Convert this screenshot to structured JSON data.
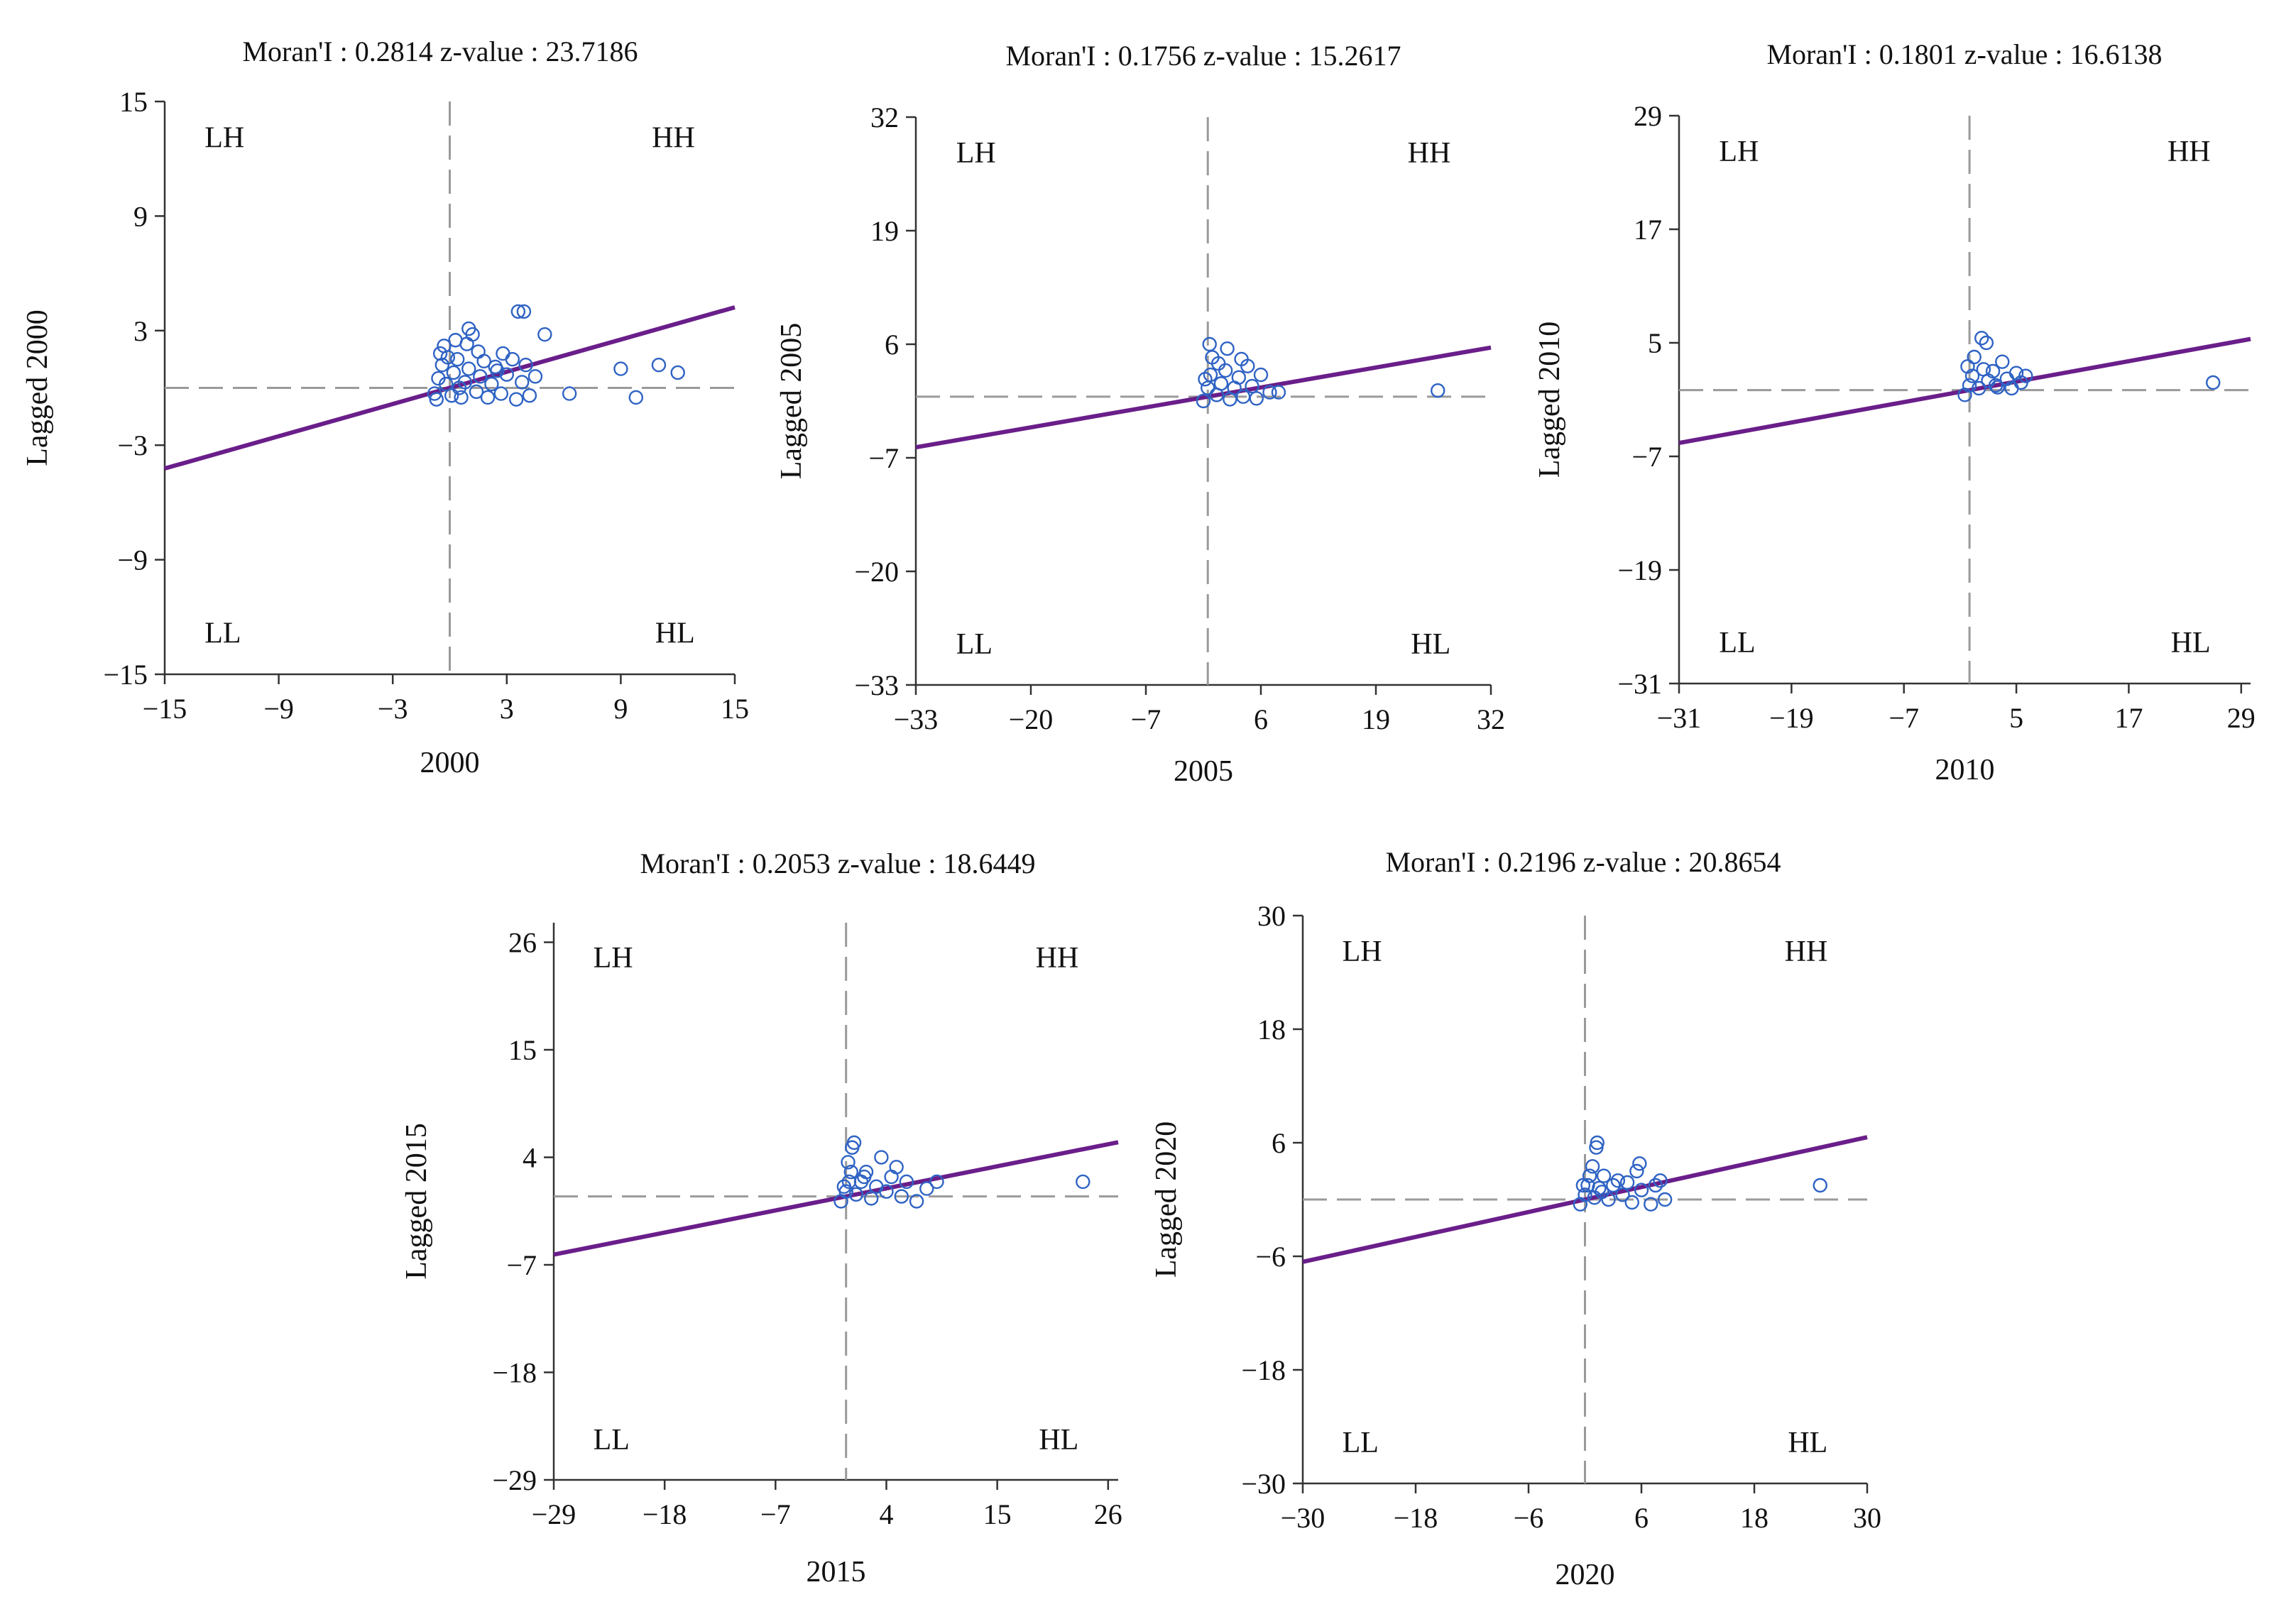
{
  "chart_data": [
    {
      "type": "scatter",
      "year": "2000",
      "morans_i": "0.2814",
      "z_value": "23.7186",
      "title": "Moran'I : 0.2814   z-value : 23.7186",
      "xlabel": "2000",
      "ylabel": "Lagged 2000",
      "xlim": [
        -15,
        15
      ],
      "ylim": [
        -15,
        15
      ],
      "xticks": [
        -15,
        -9,
        -3,
        3,
        9,
        15
      ],
      "yticks": [
        -15,
        -9,
        -3,
        3,
        9,
        15
      ],
      "xtick_labels": [
        "−15",
        "−9",
        "−3",
        "3",
        "9",
        "15"
      ],
      "ytick_labels": [
        "−15",
        "−9",
        "−3",
        "3",
        "9",
        "15"
      ],
      "fit_slope": 0.2814,
      "quadrants": {
        "lh": "LH",
        "hh": "HH",
        "ll": "LL",
        "hl": "HL"
      },
      "points": [
        [
          -0.8,
          -0.3
        ],
        [
          -0.6,
          0.5
        ],
        [
          -0.4,
          1.2
        ],
        [
          -0.5,
          1.8
        ],
        [
          -0.3,
          2.2
        ],
        [
          -0.7,
          -0.6
        ],
        [
          -0.2,
          0.2
        ],
        [
          0.1,
          -0.4
        ],
        [
          0.2,
          0.8
        ],
        [
          0.4,
          1.5
        ],
        [
          0.3,
          2.5
        ],
        [
          0.6,
          -0.5
        ],
        [
          0.8,
          0.3
        ],
        [
          1.0,
          1.0
        ],
        [
          1.2,
          2.8
        ],
        [
          1.0,
          3.1
        ],
        [
          1.4,
          -0.2
        ],
        [
          1.6,
          0.6
        ],
        [
          1.8,
          1.4
        ],
        [
          2.0,
          -0.5
        ],
        [
          2.2,
          0.2
        ],
        [
          2.5,
          0.9
        ],
        [
          2.7,
          -0.3
        ],
        [
          3.0,
          0.7
        ],
        [
          3.3,
          1.5
        ],
        [
          3.5,
          -0.6
        ],
        [
          3.8,
          0.3
        ],
        [
          4.0,
          1.2
        ],
        [
          4.2,
          -0.4
        ],
        [
          3.6,
          4.0
        ],
        [
          3.9,
          4.0
        ],
        [
          5.0,
          2.8
        ],
        [
          2.8,
          1.8
        ],
        [
          6.3,
          -0.3
        ],
        [
          9.8,
          -0.5
        ],
        [
          9.0,
          1.0
        ],
        [
          11.0,
          1.2
        ],
        [
          12.0,
          0.8
        ],
        [
          0.5,
          0.0
        ],
        [
          1.5,
          1.9
        ],
        [
          2.4,
          1.1
        ],
        [
          -0.1,
          1.6
        ],
        [
          0.9,
          2.3
        ],
        [
          4.5,
          0.6
        ]
      ]
    },
    {
      "type": "scatter",
      "year": "2005",
      "morans_i": "0.1756",
      "z_value": "15.2617",
      "title": "Moran'I : 0.1756   z-value : 15.2617",
      "xlabel": "2005",
      "ylabel": "Lagged 2005",
      "xlim": [
        -33,
        32
      ],
      "ylim": [
        -33,
        32
      ],
      "xticks": [
        -33,
        -20,
        -7,
        6,
        19,
        32
      ],
      "yticks": [
        -33,
        -20,
        -7,
        6,
        19,
        32
      ],
      "xtick_labels": [
        "−33",
        "−20",
        "−7",
        "6",
        "19",
        "32"
      ],
      "ytick_labels": [
        "−33",
        "−20",
        "−7",
        "6",
        "19",
        "32"
      ],
      "fit_slope": 0.1756,
      "quadrants": {
        "lh": "LH",
        "hh": "HH",
        "ll": "LL",
        "hl": "HL"
      },
      "points": [
        [
          -0.5,
          -0.5
        ],
        [
          0.0,
          1.0
        ],
        [
          0.3,
          2.5
        ],
        [
          0.5,
          4.5
        ],
        [
          0.2,
          6.0
        ],
        [
          1.0,
          0.2
        ],
        [
          1.5,
          1.5
        ],
        [
          2.0,
          3.0
        ],
        [
          2.2,
          5.5
        ],
        [
          2.5,
          -0.3
        ],
        [
          3.0,
          1.0
        ],
        [
          3.5,
          2.2
        ],
        [
          4.0,
          0.0
        ],
        [
          4.5,
          3.5
        ],
        [
          5.0,
          1.2
        ],
        [
          5.5,
          -0.2
        ],
        [
          6.0,
          2.5
        ],
        [
          7.0,
          0.5
        ],
        [
          8.0,
          0.5
        ],
        [
          26.0,
          0.7
        ],
        [
          1.2,
          3.8
        ],
        [
          3.8,
          4.3
        ],
        [
          -0.3,
          2.0
        ]
      ]
    },
    {
      "type": "scatter",
      "year": "2010",
      "morans_i": "0.1801",
      "z_value": "16.6138",
      "title": "Moran'I : 0.1801   z-value : 16.6138",
      "xlabel": "2010",
      "ylabel": "Lagged 2010",
      "xlim": [
        -31,
        30
      ],
      "ylim": [
        -31,
        29
      ],
      "xticks": [
        -31,
        -19,
        -7,
        5,
        17,
        29
      ],
      "yticks": [
        -31,
        -19,
        -7,
        5,
        17,
        29
      ],
      "xtick_labels": [
        "−31",
        "−19",
        "−7",
        "5",
        "17",
        "29"
      ],
      "ytick_labels": [
        "−31",
        "−19",
        "−7",
        "5",
        "17",
        "29"
      ],
      "fit_slope": 0.1801,
      "quadrants": {
        "lh": "LH",
        "hh": "HH",
        "ll": "LL",
        "hl": "HL"
      },
      "points": [
        [
          -0.5,
          -0.5
        ],
        [
          0.0,
          0.5
        ],
        [
          0.3,
          1.5
        ],
        [
          0.5,
          3.5
        ],
        [
          1.0,
          0.2
        ],
        [
          1.3,
          5.5
        ],
        [
          1.8,
          5.0
        ],
        [
          2.0,
          1.0
        ],
        [
          2.5,
          2.0
        ],
        [
          3.0,
          0.3
        ],
        [
          3.5,
          3.0
        ],
        [
          4.0,
          1.2
        ],
        [
          4.5,
          0.2
        ],
        [
          5.0,
          1.8
        ],
        [
          5.5,
          0.8
        ],
        [
          6.0,
          1.5
        ],
        [
          26.0,
          0.8
        ],
        [
          1.5,
          2.2
        ],
        [
          2.8,
          0.5
        ],
        [
          -0.2,
          2.5
        ]
      ]
    },
    {
      "type": "scatter",
      "year": "2015",
      "morans_i": "0.2053",
      "z_value": "18.6449",
      "title": "Moran'I : 0.2053   z-value : 18.6449",
      "xlabel": "2015",
      "ylabel": "Lagged 2015",
      "xlim": [
        -29,
        27
      ],
      "ylim": [
        -29,
        28
      ],
      "xticks": [
        -29,
        -18,
        -7,
        4,
        15,
        26
      ],
      "yticks": [
        -29,
        -18,
        -7,
        4,
        15,
        26
      ],
      "xtick_labels": [
        "−29",
        "−18",
        "−7",
        "4",
        "15",
        "26"
      ],
      "ytick_labels": [
        "−29",
        "−18",
        "−7",
        "4",
        "15",
        "26"
      ],
      "fit_slope": 0.2053,
      "quadrants": {
        "lh": "LH",
        "hh": "HH",
        "ll": "LL",
        "hl": "HL"
      },
      "points": [
        [
          -0.5,
          -0.5
        ],
        [
          0.0,
          0.5
        ],
        [
          0.3,
          1.5
        ],
        [
          0.5,
          2.5
        ],
        [
          0.2,
          3.5
        ],
        [
          0.6,
          5.0
        ],
        [
          0.8,
          5.5
        ],
        [
          1.0,
          0.2
        ],
        [
          1.5,
          1.5
        ],
        [
          2.0,
          2.5
        ],
        [
          2.5,
          -0.2
        ],
        [
          3.0,
          1.0
        ],
        [
          3.5,
          4.0
        ],
        [
          4.0,
          0.5
        ],
        [
          4.5,
          2.0
        ],
        [
          5.0,
          3.0
        ],
        [
          5.5,
          0.0
        ],
        [
          6.0,
          1.5
        ],
        [
          7.0,
          -0.5
        ],
        [
          8.0,
          0.8
        ],
        [
          9.0,
          1.5
        ],
        [
          23.5,
          1.5
        ],
        [
          1.8,
          2.0
        ],
        [
          -0.2,
          1.0
        ]
      ]
    },
    {
      "type": "scatter",
      "year": "2020",
      "morans_i": "0.2196",
      "z_value": "20.8654",
      "title": "Moran'I : 0.2196   z-value : 20.8654",
      "xlabel": "2020",
      "ylabel": "Lagged 2020",
      "xlim": [
        -30,
        30
      ],
      "ylim": [
        -30,
        30
      ],
      "xticks": [
        -30,
        -18,
        -6,
        6,
        18,
        30
      ],
      "yticks": [
        -30,
        -18,
        -6,
        6,
        18,
        30
      ],
      "xtick_labels": [
        "−30",
        "−18",
        "−6",
        "6",
        "18",
        "30"
      ],
      "ytick_labels": [
        "−30",
        "−18",
        "−6",
        "6",
        "18",
        "30"
      ],
      "fit_slope": 0.2196,
      "quadrants": {
        "lh": "LH",
        "hh": "HH",
        "ll": "LL",
        "hl": "HL"
      },
      "points": [
        [
          -0.5,
          -0.5
        ],
        [
          0.0,
          0.5
        ],
        [
          0.3,
          1.5
        ],
        [
          0.5,
          2.5
        ],
        [
          0.8,
          3.5
        ],
        [
          1.0,
          0.2
        ],
        [
          1.2,
          5.5
        ],
        [
          1.3,
          6.0
        ],
        [
          1.5,
          1.2
        ],
        [
          2.0,
          2.5
        ],
        [
          2.5,
          0.0
        ],
        [
          3.0,
          1.5
        ],
        [
          3.5,
          2.0
        ],
        [
          4.0,
          0.5
        ],
        [
          4.5,
          1.8
        ],
        [
          5.0,
          -0.3
        ],
        [
          5.5,
          3.0
        ],
        [
          5.8,
          3.8
        ],
        [
          6.0,
          1.0
        ],
        [
          7.0,
          -0.5
        ],
        [
          7.5,
          1.5
        ],
        [
          8.0,
          2.0
        ],
        [
          8.5,
          0.0
        ],
        [
          25.0,
          1.5
        ],
        [
          1.8,
          0.8
        ],
        [
          -0.2,
          1.5
        ]
      ]
    }
  ]
}
